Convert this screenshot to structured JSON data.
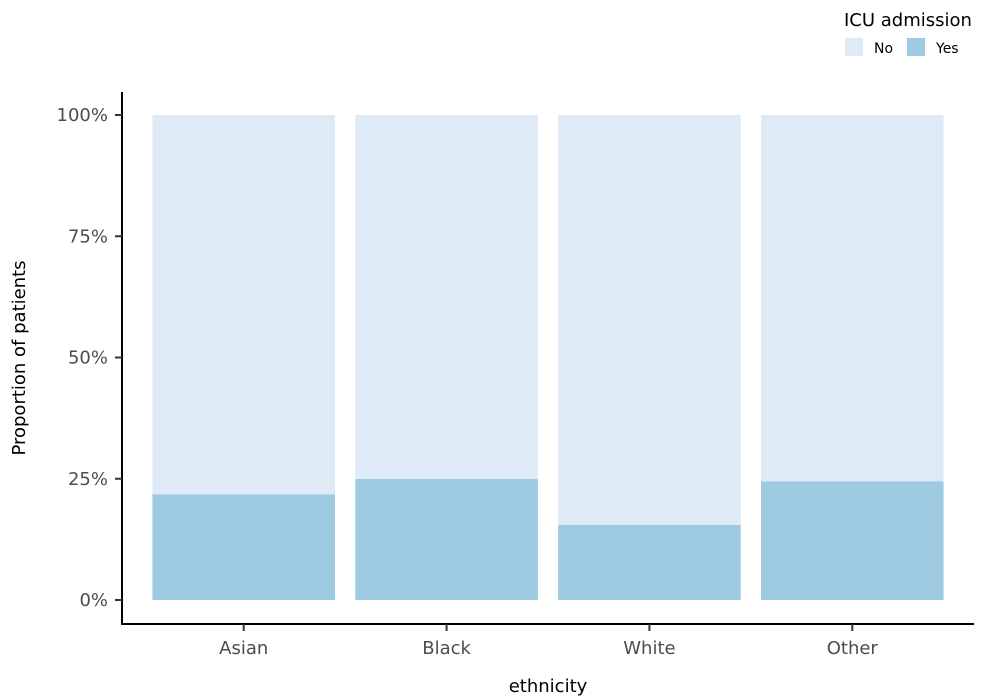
{
  "chart_data": {
    "type": "bar",
    "stacked": true,
    "categories": [
      "Asian",
      "Black",
      "White",
      "Other"
    ],
    "series": [
      {
        "name": "No",
        "values": [
          0.782,
          0.75,
          0.845,
          0.755
        ],
        "color": "#deebf7"
      },
      {
        "name": "Yes",
        "values": [
          0.218,
          0.25,
          0.155,
          0.245
        ],
        "color": "#9ecae1"
      }
    ],
    "ylim": [
      0,
      1
    ],
    "yticks": [
      0,
      0.25,
      0.5,
      0.75,
      1
    ],
    "ytick_labels": [
      "0%",
      "25%",
      "50%",
      "75%",
      "100%"
    ],
    "xlabel": "ethnicity",
    "ylabel": "Proportion of patients",
    "legend": {
      "title": "ICU admission",
      "position": "top-right",
      "entries": [
        "No",
        "Yes"
      ]
    },
    "grid": false
  }
}
